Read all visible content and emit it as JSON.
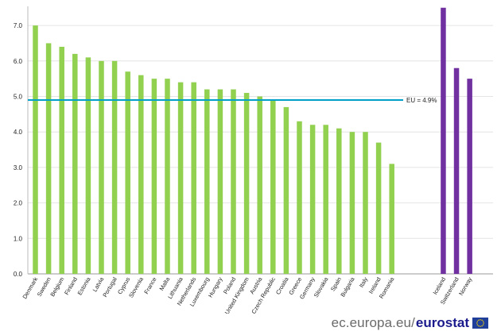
{
  "footer": {
    "site": "ec.europa.eu/",
    "brand": "eurostat",
    "logo_icon": "eu-flag-icon"
  },
  "chart_data": {
    "type": "bar",
    "title": "",
    "xlabel": "",
    "ylabel": "",
    "ylim": [
      0,
      7.5
    ],
    "yticks": [
      "0.0",
      "1.0",
      "2.0",
      "3.0",
      "4.0",
      "5.0",
      "6.0",
      "7.0"
    ],
    "grid": "horizontal",
    "groups": [
      {
        "color": "#92d050",
        "categories": [
          "Denmark",
          "Sweden",
          "Belgium",
          "Finland",
          "Estonia",
          "Latvia",
          "Portugal",
          "Cyprus",
          "Slovenia",
          "France",
          "Malta",
          "Lithuania",
          "Netherlands",
          "Luxembourg",
          "Hungary",
          "Poland",
          "United Kingdom",
          "Austria",
          "Czech Republic",
          "Croatia",
          "Greece",
          "Germany",
          "Slovakia",
          "Spain",
          "Bulgaria",
          "Italy",
          "Ireland",
          "Romania"
        ],
        "values": [
          7.0,
          6.5,
          6.4,
          6.2,
          6.1,
          6.0,
          6.0,
          5.7,
          5.6,
          5.5,
          5.5,
          5.4,
          5.4,
          5.2,
          5.2,
          5.2,
          5.1,
          5.0,
          4.9,
          4.7,
          4.3,
          4.2,
          4.2,
          4.1,
          4.0,
          4.0,
          3.7,
          3.1
        ]
      },
      {
        "color": "#7030a0",
        "categories": [
          "Iceland",
          "Switzerland",
          "Norway"
        ],
        "values": [
          7.5,
          5.8,
          5.5
        ]
      }
    ],
    "reference_line": {
      "label": "EU = 4.9%",
      "value": 4.9,
      "color": "#00a0c8"
    }
  }
}
